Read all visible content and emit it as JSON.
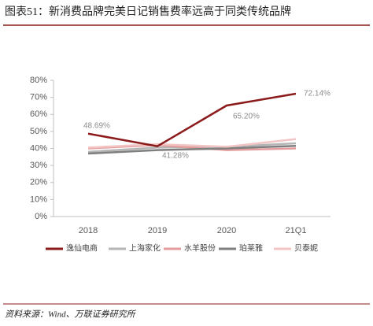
{
  "chart_data": {
    "type": "line",
    "title": "图表51：新消费品牌完美日记销售费率远高于同类传统品牌",
    "source": "资料来源：Wind、万联证券研究所",
    "categories": [
      "2018",
      "2019",
      "2020",
      "21Q1"
    ],
    "series": [
      {
        "name": "逸仙电商",
        "color": "#8b1a1a",
        "values": [
          48.69,
          41.28,
          65.2,
          72.14
        ],
        "value_labels": [
          "48.69%",
          "41.28%",
          "65.20%",
          "72.14%"
        ]
      },
      {
        "name": "上海家化",
        "color": "#b5b5b5",
        "values": [
          38,
          40.5,
          41,
          43
        ]
      },
      {
        "name": "水羊股份",
        "color": "#e39c9c",
        "values": [
          40,
          42,
          39,
          40
        ]
      },
      {
        "name": "珀莱雅",
        "color": "#7f7f7f",
        "values": [
          37,
          39,
          40,
          41.5
        ]
      },
      {
        "name": "贝泰妮",
        "color": "#f2c4c4",
        "values": [
          40.5,
          42.5,
          41,
          45.5
        ]
      }
    ],
    "ylim": [
      0,
      80
    ],
    "yticks": [
      {
        "value": 0,
        "label": "0%"
      },
      {
        "value": 10,
        "label": "10%"
      },
      {
        "value": 20,
        "label": "20%"
      },
      {
        "value": 30,
        "label": "30%"
      },
      {
        "value": 40,
        "label": "40%"
      },
      {
        "value": 50,
        "label": "50%"
      },
      {
        "value": 60,
        "label": "60%"
      },
      {
        "value": 70,
        "label": "70%"
      },
      {
        "value": 80,
        "label": "80%"
      }
    ],
    "grid": false
  }
}
